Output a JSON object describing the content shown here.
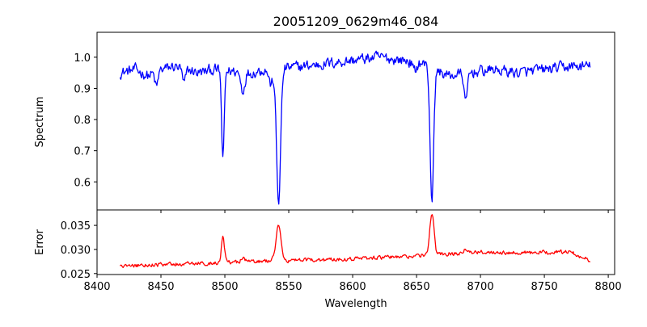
{
  "chart_data": [
    {
      "type": "line",
      "title": "20051209_0629m46_084",
      "xlabel": "",
      "ylabel": "Spectrum",
      "xlim": [
        8400,
        8805
      ],
      "ylim": [
        0.51,
        1.08
      ],
      "x_ticks": [
        8400,
        8450,
        8500,
        8550,
        8600,
        8650,
        8700,
        8750,
        8800
      ],
      "y_ticks": [
        0.6,
        0.7,
        0.8,
        0.9,
        1.0
      ],
      "y_tick_labels": [
        "0.6",
        "0.7",
        "0.8",
        "0.9",
        "1.0"
      ],
      "grid": false,
      "color": "#0000ff",
      "x_start": 8418,
      "x_end": 8786,
      "continuum": [
        [
          8418,
          0.95
        ],
        [
          8430,
          0.96
        ],
        [
          8440,
          0.94
        ],
        [
          8450,
          0.96
        ],
        [
          8460,
          0.97
        ],
        [
          8470,
          0.96
        ],
        [
          8480,
          0.95
        ],
        [
          8490,
          0.96
        ],
        [
          8520,
          0.95
        ],
        [
          8530,
          0.96
        ],
        [
          8560,
          0.97
        ],
        [
          8580,
          0.98
        ],
        [
          8600,
          0.99
        ],
        [
          8620,
          1.0
        ],
        [
          8640,
          0.99
        ],
        [
          8655,
          0.98
        ],
        [
          8675,
          0.94
        ],
        [
          8690,
          0.95
        ],
        [
          8710,
          0.96
        ],
        [
          8730,
          0.95
        ],
        [
          8750,
          0.96
        ],
        [
          8770,
          0.97
        ],
        [
          8786,
          0.97
        ]
      ],
      "absorption_lines": [
        {
          "center": 8498.5,
          "depth": 0.29,
          "width": 1.0
        },
        {
          "center": 8542.0,
          "depth": 0.43,
          "width": 1.6
        },
        {
          "center": 8662.0,
          "depth": 0.42,
          "width": 1.4
        },
        {
          "center": 8514.0,
          "depth": 0.06,
          "width": 1.5
        },
        {
          "center": 8688.5,
          "depth": 0.1,
          "width": 1.2
        },
        {
          "center": 8468.0,
          "depth": 0.05,
          "width": 1.2
        },
        {
          "center": 8446.5,
          "depth": 0.05,
          "width": 1.2
        },
        {
          "center": 8536.0,
          "depth": 0.05,
          "width": 1.5
        },
        {
          "center": 8648.5,
          "depth": 0.03,
          "width": 1.5
        }
      ],
      "noise_amplitude": 0.028
    },
    {
      "type": "line",
      "title": "",
      "xlabel": "Wavelength",
      "ylabel": "Error",
      "xlim": [
        8400,
        8805
      ],
      "ylim": [
        0.0248,
        0.0382
      ],
      "x_ticks": [
        8400,
        8450,
        8500,
        8550,
        8600,
        8650,
        8700,
        8750,
        8800
      ],
      "x_tick_labels": [
        "8400",
        "8450",
        "8500",
        "8550",
        "8600",
        "8650",
        "8700",
        "8750",
        "8800"
      ],
      "y_ticks": [
        0.025,
        0.03,
        0.035
      ],
      "y_tick_labels": [
        "0.025",
        "0.030",
        "0.035"
      ],
      "grid": false,
      "color": "#ff0000",
      "x_start": 8418,
      "x_end": 8786,
      "baseline": [
        [
          8418,
          0.0265
        ],
        [
          8440,
          0.0268
        ],
        [
          8470,
          0.027
        ],
        [
          8490,
          0.0272
        ],
        [
          8520,
          0.0275
        ],
        [
          8560,
          0.0277
        ],
        [
          8600,
          0.0281
        ],
        [
          8640,
          0.0285
        ],
        [
          8655,
          0.0288
        ],
        [
          8680,
          0.0292
        ],
        [
          8710,
          0.0295
        ],
        [
          8740,
          0.0293
        ],
        [
          8770,
          0.0295
        ],
        [
          8786,
          0.0277
        ]
      ],
      "emission_peaks": [
        {
          "center": 8498.5,
          "height": 0.0052,
          "width": 1.2
        },
        {
          "center": 8542.0,
          "height": 0.0073,
          "width": 2.0
        },
        {
          "center": 8662.0,
          "height": 0.0087,
          "width": 1.6
        },
        {
          "center": 8514.0,
          "height": 0.0008,
          "width": 1.5
        },
        {
          "center": 8688.5,
          "height": 0.001,
          "width": 1.5
        }
      ],
      "noise_amplitude": 0.0006
    }
  ]
}
